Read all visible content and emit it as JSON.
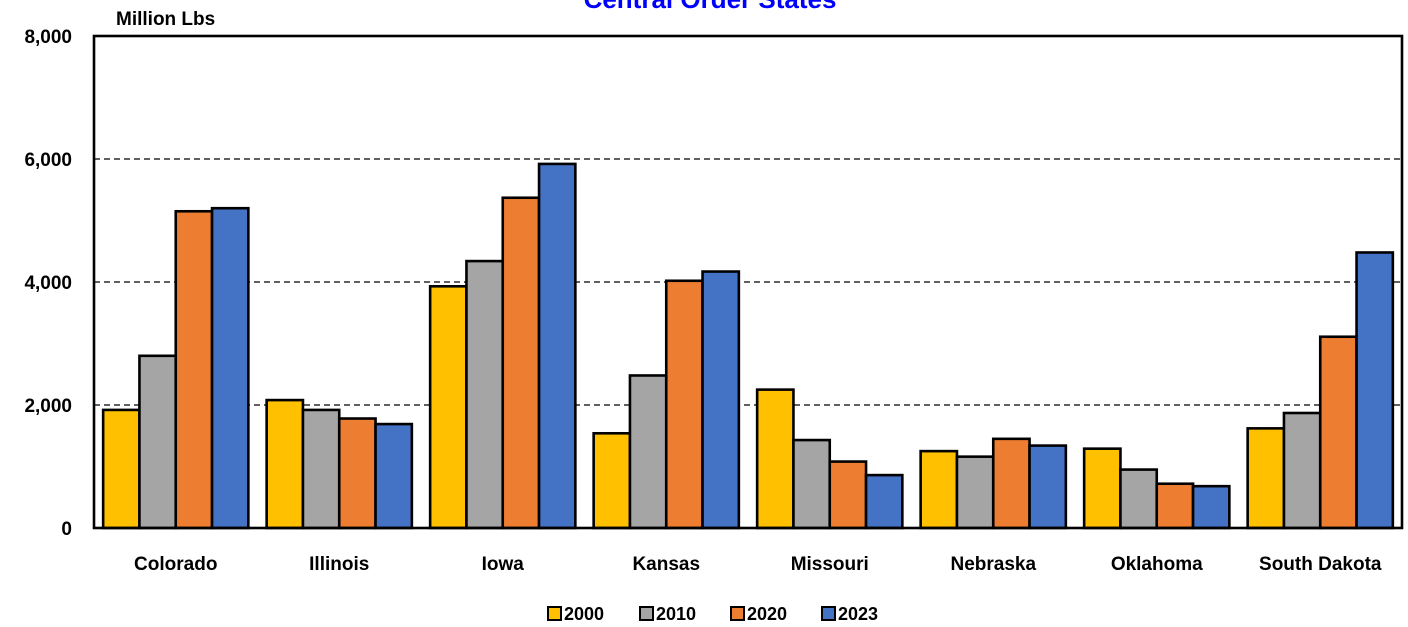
{
  "chart_data": {
    "type": "bar",
    "title": "Central Order States",
    "ylabel": "Million Lbs",
    "xlabel": "",
    "ylim": [
      0,
      8000
    ],
    "yticks": [
      0,
      2000,
      4000,
      6000,
      8000
    ],
    "ytick_labels": [
      "0",
      "2,000",
      "4,000",
      "6,000",
      "8,000"
    ],
    "grid": "horizontal dashed",
    "legend_position": "bottom",
    "categories": [
      "Colorado",
      "Illinois",
      "Iowa",
      "Kansas",
      "Missouri",
      "Nebraska",
      "Oklahoma",
      "South Dakota"
    ],
    "series": [
      {
        "name": "2000",
        "color": "#ffc000",
        "values": [
          1920,
          2080,
          3930,
          1540,
          2250,
          1250,
          1290,
          1620
        ]
      },
      {
        "name": "2010",
        "color": "#a5a5a5",
        "values": [
          2800,
          1920,
          4340,
          2480,
          1430,
          1160,
          950,
          1870
        ]
      },
      {
        "name": "2020",
        "color": "#ed7d31",
        "values": [
          5150,
          1780,
          5370,
          4020,
          1080,
          1450,
          720,
          3110
        ]
      },
      {
        "name": "2023",
        "color": "#4472c4",
        "values": [
          5200,
          1690,
          5920,
          4170,
          860,
          1340,
          680,
          4480
        ]
      }
    ]
  }
}
